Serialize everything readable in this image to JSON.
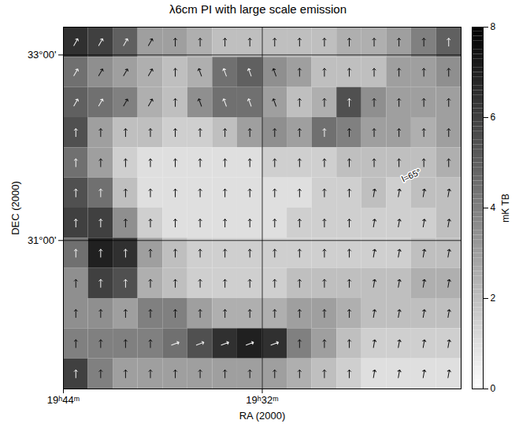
{
  "chart_data": {
    "type": "heatmap",
    "title": "λ6cm PI with large scale emission",
    "x_label": "RA (2000)",
    "y_label": "DEC (2000)",
    "xlim": [
      1184,
      1160
    ],
    "ylim": [
      29.4,
      33.3
    ],
    "xticks": [
      {
        "value": 1184,
        "label": "19ʰ44ᵐ"
      },
      {
        "value": 1172,
        "label": "19ʰ32ᵐ"
      }
    ],
    "yticks": [
      {
        "value": 31,
        "label": "31°00'"
      },
      {
        "value": 33,
        "label": "33°00'"
      }
    ],
    "grid": true,
    "x_bins": [
      1184,
      1182.5,
      1181,
      1179.5,
      1178,
      1176.5,
      1175,
      1173.5,
      1172,
      1170.5,
      1169,
      1167.5,
      1166,
      1164.5,
      1163,
      1161.5,
      1160
    ],
    "y_bins": [
      33.3,
      32.975,
      32.65,
      32.325,
      32,
      31.675,
      31.35,
      31.025,
      30.7,
      30.375,
      30.05,
      29.725,
      29.4
    ],
    "cells": [
      [
        6.5,
        6,
        5,
        3,
        3,
        2.5,
        2,
        2,
        2,
        2,
        2,
        2.5,
        2.5,
        3,
        4,
        5
      ],
      [
        4.5,
        3.5,
        3,
        2.5,
        2,
        2.5,
        4.5,
        5,
        3.5,
        3,
        2,
        2,
        2,
        3,
        3,
        3.5
      ],
      [
        5,
        4.5,
        4,
        2.5,
        2,
        3.5,
        4.5,
        4.5,
        3,
        2,
        2.5,
        5.5,
        3.5,
        3,
        3,
        3
      ],
      [
        5.5,
        3,
        2,
        2,
        1.5,
        1.5,
        2,
        3,
        3.5,
        3,
        4.5,
        4,
        3,
        3,
        2.5,
        3
      ],
      [
        4.5,
        3,
        1.5,
        1,
        1,
        1,
        1,
        1,
        1.5,
        1.5,
        1.5,
        2,
        2,
        2,
        2,
        2.5
      ],
      [
        5.5,
        4.5,
        2,
        1,
        1,
        1,
        1,
        1,
        1,
        1,
        1.5,
        1.5,
        2,
        1.5,
        2,
        2
      ],
      [
        6,
        6,
        3.5,
        1.5,
        1,
        1,
        1,
        1,
        1,
        1.5,
        1.5,
        1.5,
        1.5,
        1.5,
        1.5,
        2
      ],
      [
        4.5,
        7,
        6.5,
        3,
        2,
        1.5,
        1.5,
        1.5,
        1.5,
        1.5,
        1.5,
        1.5,
        1.5,
        1.5,
        2,
        2
      ],
      [
        3.5,
        6,
        5.5,
        2.5,
        2,
        1.5,
        1.5,
        1.5,
        1.5,
        2,
        2,
        2,
        2,
        2,
        2.5,
        2.5
      ],
      [
        3.5,
        3.5,
        3,
        4,
        4,
        3,
        2.5,
        2.5,
        2.5,
        3,
        3,
        2.5,
        2,
        2,
        2,
        2
      ],
      [
        4,
        4,
        4,
        4,
        4.5,
        5.5,
        6.5,
        7,
        6.5,
        4,
        3,
        2,
        1.5,
        1.5,
        1.5,
        1.5
      ],
      [
        6,
        4,
        3,
        3,
        3,
        3,
        3,
        3,
        3,
        2.5,
        2,
        1.5,
        1,
        1,
        1,
        1
      ]
    ],
    "vector_angles": [
      [
        30,
        30,
        30,
        30,
        0,
        0,
        0,
        0,
        0,
        0,
        0,
        0,
        0,
        0,
        0,
        0
      ],
      [
        30,
        30,
        30,
        30,
        0,
        -20,
        -20,
        -20,
        -20,
        0,
        0,
        0,
        0,
        0,
        0,
        0
      ],
      [
        30,
        30,
        30,
        30,
        0,
        -20,
        -20,
        -20,
        -20,
        0,
        0,
        0,
        0,
        0,
        0,
        0
      ],
      [
        0,
        0,
        0,
        0,
        0,
        0,
        0,
        0,
        0,
        0,
        0,
        0,
        0,
        0,
        0,
        0
      ],
      [
        0,
        0,
        0,
        0,
        0,
        0,
        0,
        0,
        0,
        0,
        0,
        0,
        0,
        0,
        0,
        0
      ],
      [
        0,
        0,
        0,
        0,
        0,
        0,
        0,
        0,
        0,
        0,
        0,
        0,
        10,
        10,
        10,
        10
      ],
      [
        0,
        0,
        0,
        0,
        0,
        0,
        0,
        0,
        0,
        0,
        0,
        0,
        10,
        10,
        10,
        10
      ],
      [
        0,
        0,
        0,
        0,
        0,
        0,
        0,
        0,
        0,
        0,
        0,
        0,
        10,
        10,
        10,
        10
      ],
      [
        0,
        0,
        0,
        0,
        0,
        0,
        0,
        0,
        0,
        0,
        0,
        0,
        10,
        10,
        10,
        10
      ],
      [
        0,
        0,
        0,
        0,
        0,
        0,
        0,
        0,
        0,
        0,
        0,
        0,
        10,
        10,
        10,
        10
      ],
      [
        0,
        0,
        0,
        0,
        70,
        70,
        70,
        70,
        70,
        0,
        0,
        0,
        10,
        10,
        10,
        10
      ],
      [
        0,
        0,
        0,
        0,
        0,
        0,
        0,
        0,
        0,
        0,
        0,
        0,
        10,
        10,
        10,
        10
      ]
    ],
    "colorbar": {
      "label": "mK TB",
      "range": [
        0,
        8
      ],
      "ticks": [
        0,
        2,
        4,
        6,
        8
      ]
    },
    "annotations": [
      {
        "text": "l=65°",
        "x": 1163,
        "y": 31.7
      }
    ]
  }
}
